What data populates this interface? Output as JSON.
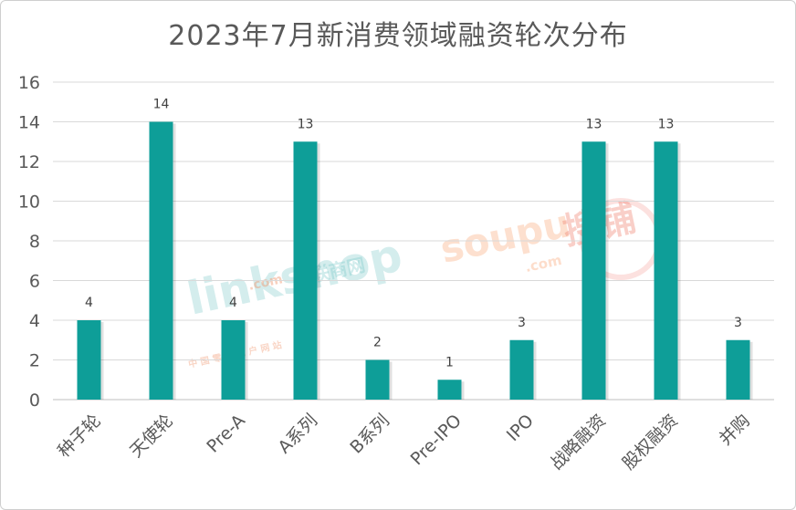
{
  "chart_data": {
    "type": "bar",
    "title": "2023年7月新消费领域融资轮次分布",
    "categories": [
      "种子轮",
      "天使轮",
      "Pre-A",
      "A系列",
      "B系列",
      "Pre-IPO",
      "IPO",
      "战略融资",
      "股权融资",
      "并购"
    ],
    "values": [
      4,
      14,
      4,
      13,
      2,
      1,
      3,
      13,
      13,
      3
    ],
    "ylim": [
      0,
      16
    ],
    "yticks": [
      0,
      2,
      4,
      6,
      8,
      10,
      12,
      14,
      16
    ],
    "grid": true,
    "bar_color": "#0E9E98",
    "data_labels": true
  },
  "watermarks": {
    "linkshop_main": "linkshop",
    "linkshop_com": ".com",
    "linkshop_cn": "联商网",
    "linkshop_sub": "中 国 零 售 门 户 网 站",
    "soupu_main": "soupu",
    "soupu_com": ".com",
    "soupu_cn": "搜铺"
  }
}
